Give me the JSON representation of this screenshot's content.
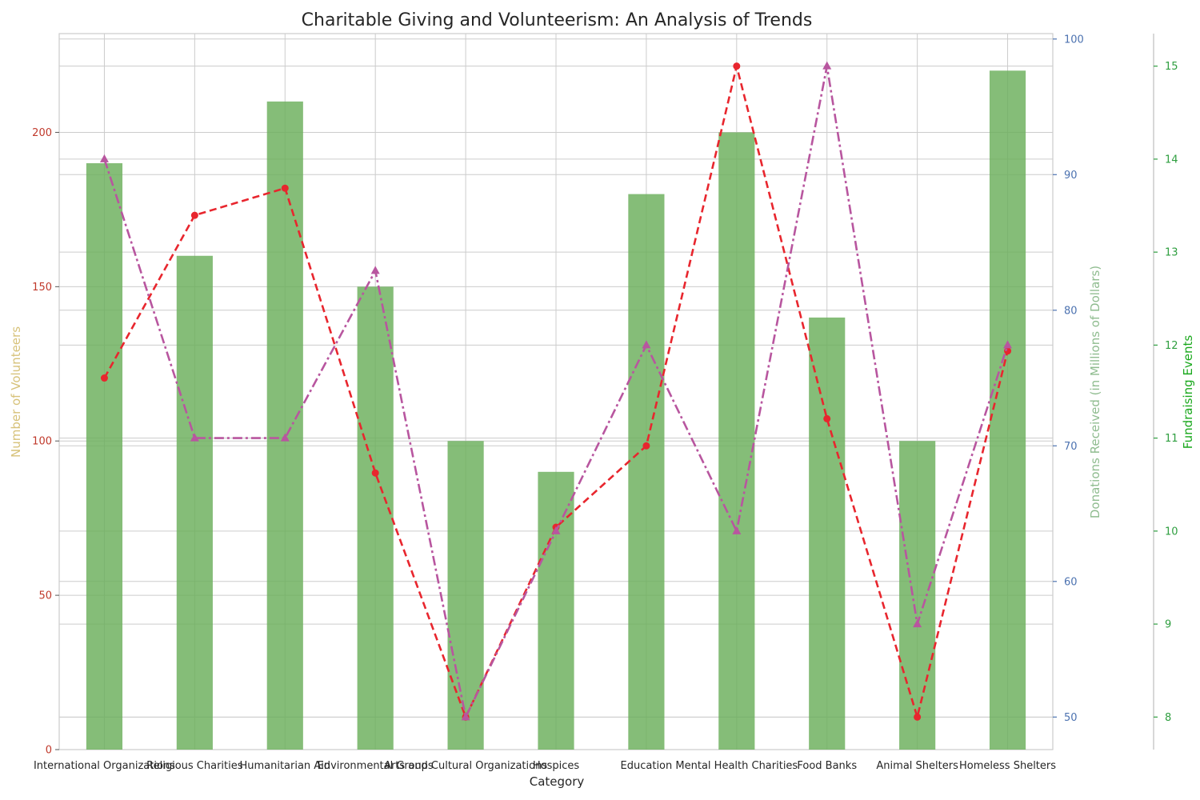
{
  "chart_data": {
    "type": "bar",
    "title": "Charitable Giving and Volunteerism: An Analysis of Trends",
    "xlabel": "Category",
    "categories": [
      "International Organizations",
      "Religious Charities",
      "Humanitarian Aid",
      "Environmental Groups",
      "Arts and Cultural Organizations",
      "Hospices",
      "Education",
      "Mental Health Charities",
      "Food Banks",
      "Animal Shelters",
      "Homeless Shelters"
    ],
    "series": [
      {
        "kind": "bar",
        "axis": "volunteers",
        "color": "#6aaf5a",
        "values": [
          190,
          160,
          210,
          150,
          100,
          90,
          180,
          200,
          140,
          100,
          220
        ]
      },
      {
        "kind": "line",
        "axis": "donations",
        "color": "#e8262e",
        "style": "dashed",
        "marker": "circle",
        "values": [
          75,
          87,
          89,
          68,
          50,
          64,
          70,
          98,
          72,
          50,
          77
        ]
      },
      {
        "kind": "line",
        "axis": "fundraising",
        "color": "#b8569f",
        "style": "dash-dot",
        "marker": "triangle",
        "values": [
          14,
          11,
          11,
          12.8,
          8,
          10,
          12,
          10,
          15,
          9,
          12
        ]
      }
    ],
    "axes": {
      "volunteers": {
        "label": "Number of Volunteers",
        "label_color": "#d7c27a",
        "tick_color": "#c0392b",
        "ylim": [
          0,
          232
        ],
        "ticks": [
          0,
          50,
          100,
          150,
          200
        ]
      },
      "donations": {
        "label": "Donations Received (in Millions of Dollars)",
        "label_color": "#8fbc8f",
        "tick_color": "#4c72b0",
        "ylim": [
          47.6,
          100.4
        ],
        "ticks": [
          50,
          60,
          70,
          80,
          90,
          100
        ]
      },
      "fundraising": {
        "label": "Fundraising Events",
        "label_color": "#19a81c",
        "tick_color": "#2e9e3f",
        "ylim": [
          7.65,
          15.35
        ],
        "ticks": [
          8,
          9,
          10,
          11,
          12,
          13,
          14,
          15
        ]
      }
    },
    "grid": true
  }
}
